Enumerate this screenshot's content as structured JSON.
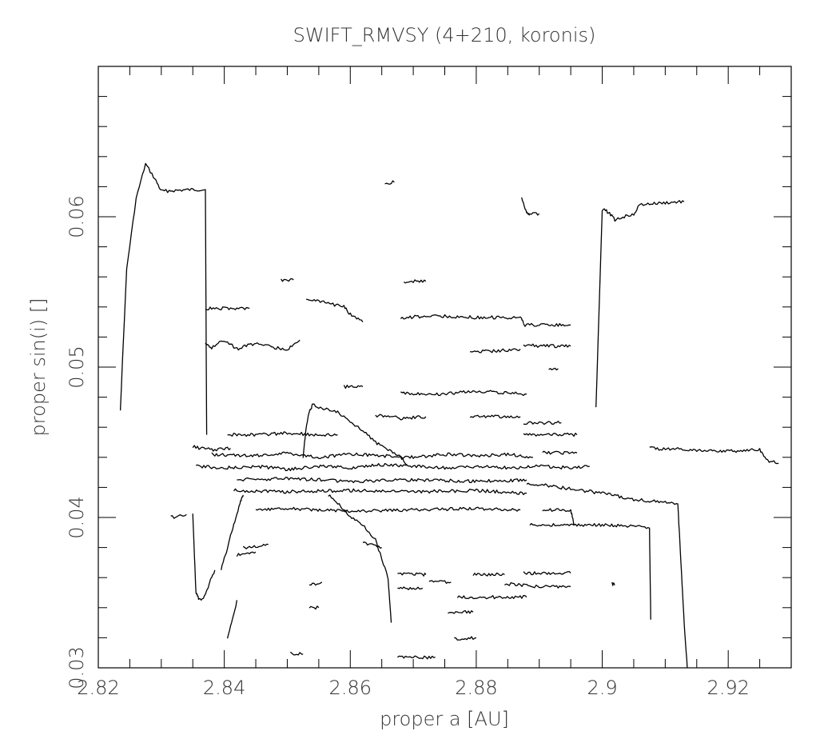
{
  "chart_data": {
    "type": "line",
    "title": "SWIFT_RMVSY (4+210, koronis)",
    "xlabel": "proper a [AU]",
    "ylabel": "proper sin(i) []",
    "xlim": [
      2.82,
      2.93
    ],
    "ylim": [
      0.03,
      0.07
    ],
    "xticks": [
      2.82,
      2.84,
      2.86,
      2.88,
      2.9,
      2.92
    ],
    "xtick_labels": [
      "2.82",
      "2.84",
      "2.86",
      "2.88",
      "2.9",
      "2.92"
    ],
    "yticks": [
      0.03,
      0.04,
      0.05,
      0.06
    ],
    "ytick_labels": [
      "0.03",
      "0.04",
      "0.05",
      "0.06"
    ],
    "grid": false,
    "series": [
      {
        "x": [
          2.8235,
          2.8245,
          2.826,
          2.8275,
          2.829,
          2.83,
          2.835,
          2.837,
          2.8372
        ],
        "y": [
          0.0472,
          0.0565,
          0.0612,
          0.0635,
          0.0625,
          0.0617,
          0.0618,
          0.0618,
          0.0455
        ]
      },
      {
        "x": [
          2.8872,
          2.888,
          2.8885,
          2.89
        ],
        "y": [
          0.0612,
          0.0603,
          0.0602,
          0.0602
        ]
      },
      {
        "x": [
          2.899,
          2.9,
          2.901,
          2.902,
          2.905,
          2.906,
          2.913
        ],
        "y": [
          0.0473,
          0.0605,
          0.0603,
          0.0598,
          0.0602,
          0.0608,
          0.061
        ]
      },
      {
        "x": [
          2.8655,
          2.867
        ],
        "y": [
          0.0622,
          0.0623
        ]
      },
      {
        "x": [
          2.837,
          2.844
        ],
        "y": [
          0.0539,
          0.0539
        ]
      },
      {
        "x": [
          2.837,
          2.838,
          2.84,
          2.842,
          2.845,
          2.848,
          2.85,
          2.852
        ],
        "y": [
          0.0515,
          0.0513,
          0.0518,
          0.0512,
          0.0516,
          0.0513,
          0.0512,
          0.0518
        ]
      },
      {
        "x": [
          2.849,
          2.851
        ],
        "y": [
          0.0558,
          0.0558
        ]
      },
      {
        "x": [
          2.853,
          2.856,
          2.859,
          2.86,
          2.862
        ],
        "y": [
          0.0545,
          0.0543,
          0.054,
          0.0535,
          0.053
        ]
      },
      {
        "x": [
          2.8685,
          2.872
        ],
        "y": [
          0.0557,
          0.0557
        ]
      },
      {
        "x": [
          2.868,
          2.874,
          2.88,
          2.887,
          2.8875
        ],
        "y": [
          0.0533,
          0.0534,
          0.0533,
          0.0533,
          0.0529
        ]
      },
      {
        "x": [
          2.8875,
          2.89,
          2.895
        ],
        "y": [
          0.0528,
          0.0528,
          0.0528
        ]
      },
      {
        "x": [
          2.879,
          2.884,
          2.887
        ],
        "y": [
          0.051,
          0.0511,
          0.0512
        ]
      },
      {
        "x": [
          2.8875,
          2.89,
          2.895
        ],
        "y": [
          0.0515,
          0.0514,
          0.0514
        ]
      },
      {
        "x": [
          2.8915,
          2.893
        ],
        "y": [
          0.0499,
          0.0499
        ]
      },
      {
        "x": [
          2.859,
          2.862
        ],
        "y": [
          0.0487,
          0.0487
        ]
      },
      {
        "x": [
          2.868,
          2.874,
          2.88,
          2.885,
          2.888
        ],
        "y": [
          0.0483,
          0.0482,
          0.0484,
          0.0483,
          0.0482
        ]
      },
      {
        "x": [
          2.864,
          2.868,
          2.872
        ],
        "y": [
          0.0468,
          0.0466,
          0.0467
        ]
      },
      {
        "x": [
          2.879,
          2.885,
          2.887
        ],
        "y": [
          0.0467,
          0.0467,
          0.0467
        ]
      },
      {
        "x": [
          2.8875,
          2.89,
          2.8935
        ],
        "y": [
          0.0463,
          0.0463,
          0.0463
        ]
      },
      {
        "x": [
          2.8875,
          2.89,
          2.896
        ],
        "y": [
          0.0455,
          0.0455,
          0.0455
        ]
      },
      {
        "x": [
          2.8905,
          2.896
        ],
        "y": [
          0.0443,
          0.0443
        ]
      },
      {
        "x": [
          2.8405,
          2.845,
          2.85,
          2.855,
          2.858
        ],
        "y": [
          0.0455,
          0.0455,
          0.0456,
          0.0455,
          0.0455
        ]
      },
      {
        "x": [
          2.835,
          2.838,
          2.841
        ],
        "y": [
          0.0447,
          0.0445,
          0.0446
        ]
      },
      {
        "x": [
          2.838,
          2.845,
          2.85,
          2.855,
          2.86,
          2.865,
          2.87,
          2.875,
          2.88,
          2.885,
          2.889
        ],
        "y": [
          0.0442,
          0.0441,
          0.0443,
          0.044,
          0.0442,
          0.0441,
          0.044,
          0.0442,
          0.0441,
          0.0442,
          0.044
        ]
      },
      {
        "x": [
          2.8355,
          2.84,
          2.845,
          2.85,
          2.855,
          2.86,
          2.865,
          2.87,
          2.875,
          2.88,
          2.885,
          2.89,
          2.895,
          2.898
        ],
        "y": [
          0.0434,
          0.0433,
          0.0434,
          0.0432,
          0.0434,
          0.0433,
          0.0435,
          0.0434,
          0.0433,
          0.0434,
          0.0433,
          0.0434,
          0.0433,
          0.0434
        ]
      },
      {
        "x": [
          2.842,
          2.85,
          2.86,
          2.87,
          2.88,
          2.888
        ],
        "y": [
          0.0425,
          0.0426,
          0.0424,
          0.0425,
          0.0424,
          0.0425
        ]
      },
      {
        "x": [
          2.8415,
          2.85,
          2.86,
          2.87,
          2.88,
          2.888
        ],
        "y": [
          0.0418,
          0.0417,
          0.0418,
          0.0417,
          0.0418,
          0.0416
        ]
      },
      {
        "x": [
          2.888,
          2.895,
          2.9,
          2.905,
          2.91,
          2.912,
          2.9125,
          2.913,
          2.9135
        ],
        "y": [
          0.0423,
          0.0419,
          0.0416,
          0.0412,
          0.041,
          0.0409,
          0.037,
          0.033,
          0.03
        ]
      },
      {
        "x": [
          2.9075,
          2.915,
          2.92,
          2.925,
          2.926,
          2.928
        ],
        "y": [
          0.0446,
          0.0445,
          0.0444,
          0.0445,
          0.0438,
          0.0436
        ]
      },
      {
        "x": [
          2.845,
          2.85,
          2.86,
          2.87,
          2.88,
          2.887
        ],
        "y": [
          0.0405,
          0.0406,
          0.0404,
          0.0405,
          0.0406,
          0.0405
        ]
      },
      {
        "x": [
          2.8885,
          2.895,
          2.9,
          2.905,
          2.9075,
          2.9077
        ],
        "y": [
          0.0395,
          0.0395,
          0.0395,
          0.0394,
          0.0393,
          0.0332
        ]
      },
      {
        "x": [
          2.8905,
          2.895,
          2.8955
        ],
        "y": [
          0.0405,
          0.0405,
          0.0395
        ]
      },
      {
        "x": [
          2.8315,
          2.834
        ],
        "y": [
          0.04,
          0.0402
        ]
      },
      {
        "x": [
          2.835,
          2.8355,
          2.836,
          2.837,
          2.8375,
          2.8385
        ],
        "y": [
          0.0402,
          0.035,
          0.0345,
          0.0348,
          0.0355,
          0.0365
        ]
      },
      {
        "x": [
          2.8395,
          2.8405,
          2.8415,
          2.8425,
          2.843
        ],
        "y": [
          0.0365,
          0.038,
          0.0395,
          0.041,
          0.0415
        ]
      },
      {
        "x": [
          2.8405,
          2.8415,
          2.842
        ],
        "y": [
          0.032,
          0.0335,
          0.0345
        ]
      },
      {
        "x": [
          2.842,
          2.845
        ],
        "y": [
          0.0375,
          0.0377
        ]
      },
      {
        "x": [
          2.843,
          2.847
        ],
        "y": [
          0.038,
          0.0382
        ]
      },
      {
        "x": [
          2.862,
          2.865
        ],
        "y": [
          0.0383,
          0.038
        ]
      },
      {
        "x": [
          2.8675,
          2.871,
          2.872
        ],
        "y": [
          0.0363,
          0.0362,
          0.0362
        ]
      },
      {
        "x": [
          2.8795,
          2.8845
        ],
        "y": [
          0.0362,
          0.0362
        ]
      },
      {
        "x": [
          2.8875,
          2.89,
          2.895
        ],
        "y": [
          0.0363,
          0.0363,
          0.0363
        ]
      },
      {
        "x": [
          2.8725,
          2.876
        ],
        "y": [
          0.0357,
          0.0357
        ]
      },
      {
        "x": [
          2.8675,
          2.8715
        ],
        "y": [
          0.0353,
          0.0353
        ]
      },
      {
        "x": [
          2.877,
          2.888
        ],
        "y": [
          0.0347,
          0.0347
        ]
      },
      {
        "x": [
          2.8845,
          2.89,
          2.895
        ],
        "y": [
          0.0356,
          0.0354,
          0.0354
        ]
      },
      {
        "x": [
          2.9015,
          2.902
        ],
        "y": [
          0.0356,
          0.0355
        ]
      },
      {
        "x": [
          2.8535,
          2.8555
        ],
        "y": [
          0.0355,
          0.0357
        ]
      },
      {
        "x": [
          2.8535,
          2.855
        ],
        "y": [
          0.034,
          0.034
        ]
      },
      {
        "x": [
          2.8755,
          2.8795
        ],
        "y": [
          0.0337,
          0.0337
        ]
      },
      {
        "x": [
          2.8765,
          2.88
        ],
        "y": [
          0.0319,
          0.032
        ]
      },
      {
        "x": [
          2.8505,
          2.8525
        ],
        "y": [
          0.031,
          0.0309
        ]
      },
      {
        "x": [
          2.8675,
          2.8735
        ],
        "y": [
          0.0307,
          0.0307
        ]
      },
      {
        "x": [
          2.8525,
          2.853,
          2.8535,
          2.854,
          2.856,
          2.858,
          2.86,
          2.862,
          2.864,
          2.866,
          2.868,
          2.869
        ],
        "y": [
          0.044,
          0.046,
          0.047,
          0.0475,
          0.0472,
          0.047,
          0.0463,
          0.0458,
          0.045,
          0.0445,
          0.044,
          0.0435
        ]
      },
      {
        "x": [
          2.8565,
          2.858,
          2.86,
          2.862,
          2.864,
          2.866,
          2.8665
        ],
        "y": [
          0.0415,
          0.041,
          0.04,
          0.0395,
          0.0385,
          0.036,
          0.033
        ]
      }
    ]
  }
}
